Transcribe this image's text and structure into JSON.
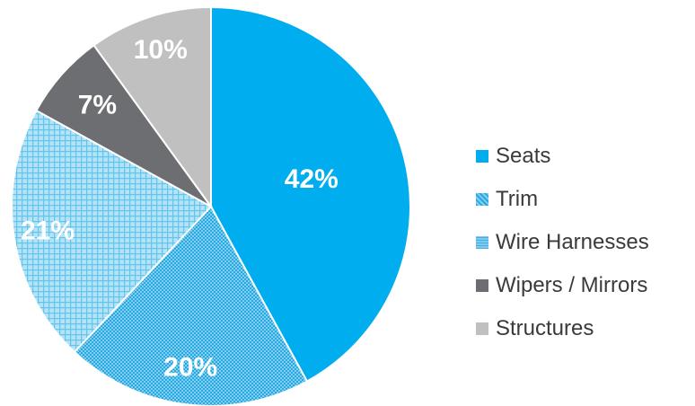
{
  "chart_data": {
    "type": "pie",
    "title": "",
    "slices": [
      {
        "name": "Seats",
        "value": 42,
        "label": "42%",
        "color": "#00aeef",
        "pattern": "solid",
        "label_color": "#ffffff"
      },
      {
        "name": "Trim",
        "value": 20,
        "label": "20%",
        "color": "#3cb6e8",
        "pattern": "dense-dots",
        "label_color": "#ffffff"
      },
      {
        "name": "Wire Harnesses",
        "value": 21,
        "label": "21%",
        "color": "#9ad8f3",
        "pattern": "grid",
        "label_color": "#ffffff"
      },
      {
        "name": "Wipers / Mirrors",
        "value": 7,
        "label": "7%",
        "color": "#6d6e71",
        "pattern": "solid",
        "label_color": "#ffffff"
      },
      {
        "name": "Structures",
        "value": 10,
        "label": "10%",
        "color": "#c0c0c0",
        "pattern": "solid",
        "label_color": "#ffffff"
      }
    ],
    "start_angle": "12 o'clock",
    "direction": "clockwise",
    "legend_position": "right"
  }
}
